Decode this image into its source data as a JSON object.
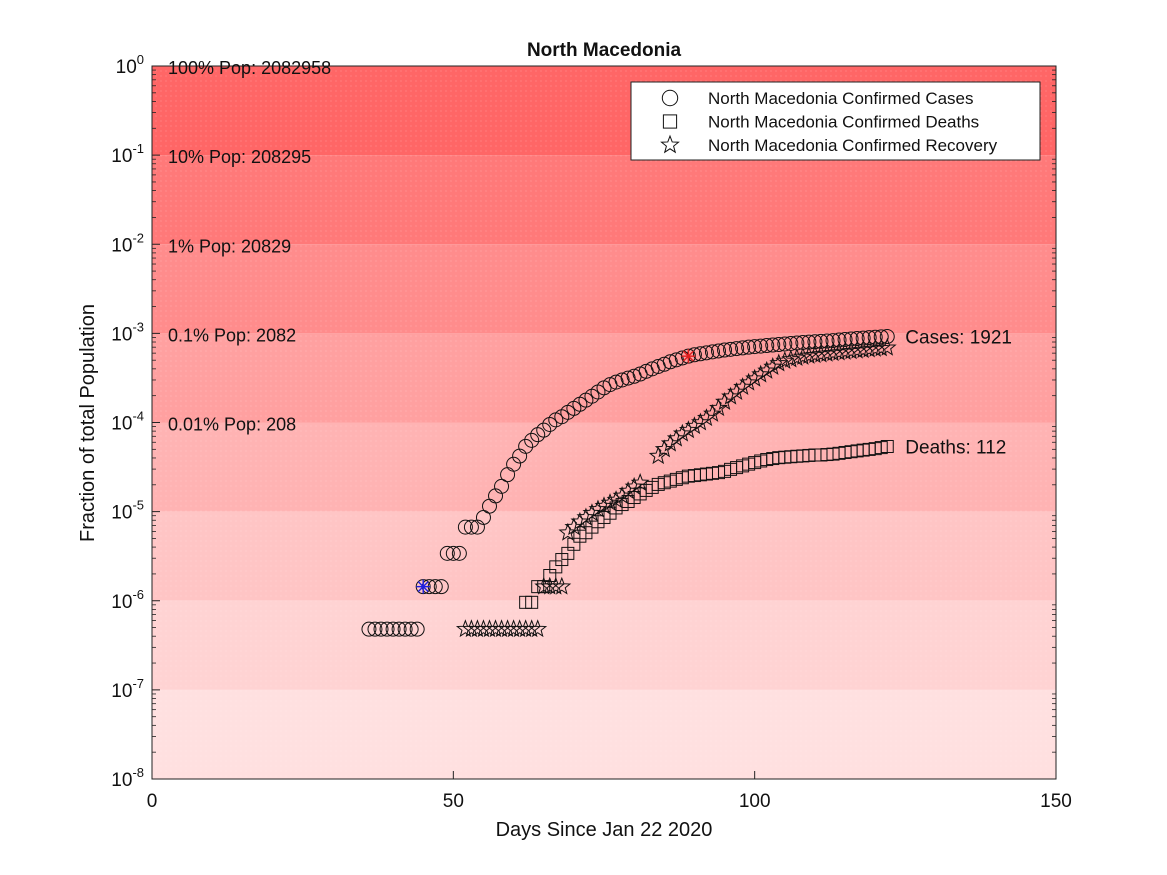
{
  "chart_data": {
    "type": "scatter",
    "title": "North Macedonia",
    "xlabel": "Days Since Jan 22 2020",
    "ylabel": "Fraction of total Population",
    "xlim": [
      0,
      150
    ],
    "ylim_exp": [
      -8,
      0
    ],
    "yscale": "log",
    "x_ticks": [
      {
        "value": 0,
        "label": "0"
      },
      {
        "value": 50,
        "label": "50"
      },
      {
        "value": 100,
        "label": "100"
      },
      {
        "value": 150,
        "label": "150"
      }
    ],
    "y_ticks": [
      {
        "exp": 0,
        "base": "10",
        "power": "0"
      },
      {
        "exp": -1,
        "base": "10",
        "power": "-1"
      },
      {
        "exp": -2,
        "base": "10",
        "power": "-2"
      },
      {
        "exp": -3,
        "base": "10",
        "power": "-3"
      },
      {
        "exp": -4,
        "base": "10",
        "power": "-4"
      },
      {
        "exp": -5,
        "base": "10",
        "power": "-5"
      },
      {
        "exp": -6,
        "base": "10",
        "power": "-6"
      },
      {
        "exp": -7,
        "base": "10",
        "power": "-7"
      },
      {
        "exp": -8,
        "base": "10",
        "power": "-8"
      }
    ],
    "bands": [
      {
        "from_exp": -1,
        "to_exp": 0,
        "color": "#ff6666"
      },
      {
        "from_exp": -2,
        "to_exp": -1,
        "color": "#ff7979"
      },
      {
        "from_exp": -3,
        "to_exp": -2,
        "color": "#ff8c8c"
      },
      {
        "from_exp": -4,
        "to_exp": -3,
        "color": "#ffa0a0"
      },
      {
        "from_exp": -5,
        "to_exp": -4,
        "color": "#ffb3b3"
      },
      {
        "from_exp": -6,
        "to_exp": -5,
        "color": "#ffc5c5"
      },
      {
        "from_exp": -7,
        "to_exp": -6,
        "color": "#ffd3d3"
      },
      {
        "from_exp": -8,
        "to_exp": -7,
        "color": "#ffe0e0"
      }
    ],
    "band_labels": [
      {
        "text": "100% Pop: 2082958",
        "exp": 0
      },
      {
        "text": "10% Pop: 208295",
        "exp": -1
      },
      {
        "text": "1% Pop: 20829",
        "exp": -2
      },
      {
        "text": "0.1% Pop: 2082",
        "exp": -3
      },
      {
        "text": "0.01% Pop: 208",
        "exp": -4
      }
    ],
    "legend": {
      "position": "top-right",
      "entries": [
        {
          "marker": "circle",
          "label": "North Macedonia Confirmed Cases"
        },
        {
          "marker": "square",
          "label": "North Macedonia Confirmed Deaths"
        },
        {
          "marker": "star",
          "label": "North Macedonia Confirmed Recovery"
        }
      ]
    },
    "series": [
      {
        "marker": "circle",
        "points": [
          [
            36,
            4.8e-07
          ],
          [
            37,
            4.8e-07
          ],
          [
            38,
            4.8e-07
          ],
          [
            39,
            4.8e-07
          ],
          [
            40,
            4.8e-07
          ],
          [
            41,
            4.8e-07
          ],
          [
            42,
            4.8e-07
          ],
          [
            43,
            4.8e-07
          ],
          [
            44,
            4.8e-07
          ],
          [
            45,
            1.44e-06
          ],
          [
            46,
            1.44e-06
          ],
          [
            47,
            1.44e-06
          ],
          [
            48,
            1.44e-06
          ],
          [
            49,
            3.4e-06
          ],
          [
            50,
            3.4e-06
          ],
          [
            51,
            3.4e-06
          ],
          [
            52,
            6.7e-06
          ],
          [
            53,
            6.7e-06
          ],
          [
            54,
            6.7e-06
          ],
          [
            55,
            8.6e-06
          ],
          [
            56,
            1.15e-05
          ],
          [
            57,
            1.5e-05
          ],
          [
            58,
            1.92e-05
          ],
          [
            59,
            2.6e-05
          ],
          [
            60,
            3.4e-05
          ],
          [
            61,
            4.2e-05
          ],
          [
            62,
            5.4e-05
          ],
          [
            63,
            6.3e-05
          ],
          [
            64,
            7.3e-05
          ],
          [
            65,
            8.2e-05
          ],
          [
            66,
            9.5e-05
          ],
          [
            67,
            0.000107
          ],
          [
            68,
            0.000116
          ],
          [
            69,
            0.00013
          ],
          [
            70,
            0.000144
          ],
          [
            71,
            0.00016
          ],
          [
            72,
            0.000178
          ],
          [
            73,
            0.000197
          ],
          [
            74,
            0.00022
          ],
          [
            75,
            0.000245
          ],
          [
            76,
            0.000266
          ],
          [
            77,
            0.000284
          ],
          [
            78,
            0.0003
          ],
          [
            79,
            0.000315
          ],
          [
            80,
            0.00033
          ],
          [
            81,
            0.00035
          ],
          [
            82,
            0.000375
          ],
          [
            83,
            0.0004
          ],
          [
            84,
            0.000425
          ],
          [
            85,
            0.00045
          ],
          [
            86,
            0.00048
          ],
          [
            87,
            0.000505
          ],
          [
            88,
            0.00053
          ],
          [
            89,
            0.000555
          ],
          [
            90,
            0.000575
          ],
          [
            91,
            0.00059
          ],
          [
            92,
            0.000605
          ],
          [
            93,
            0.00062
          ],
          [
            94,
            0.000635
          ],
          [
            95,
            0.00065
          ],
          [
            96,
            0.000662
          ],
          [
            97,
            0.000675
          ],
          [
            98,
            0.000687
          ],
          [
            99,
            0.0007
          ],
          [
            100,
            0.00071
          ],
          [
            101,
            0.00072
          ],
          [
            102,
            0.00073
          ],
          [
            103,
            0.00074
          ],
          [
            104,
            0.00075
          ],
          [
            105,
            0.00076
          ],
          [
            106,
            0.00077
          ],
          [
            107,
            0.00078
          ],
          [
            108,
            0.00079
          ],
          [
            109,
            0.000797
          ],
          [
            110,
            0.000805
          ],
          [
            111,
            0.000812
          ],
          [
            112,
            0.00082
          ],
          [
            113,
            0.00083
          ],
          [
            114,
            0.000842
          ],
          [
            115,
            0.000855
          ],
          [
            116,
            0.000865
          ],
          [
            117,
            0.000875
          ],
          [
            118,
            0.000885
          ],
          [
            119,
            0.000895
          ],
          [
            120,
            0.000905
          ],
          [
            121,
            0.000915
          ],
          [
            122,
            0.000922
          ]
        ]
      },
      {
        "marker": "square",
        "points": [
          [
            62,
            9.6e-07
          ],
          [
            63,
            9.6e-07
          ],
          [
            64,
            1.44e-06
          ],
          [
            65,
            1.44e-06
          ],
          [
            66,
            1.92e-06
          ],
          [
            67,
            2.4e-06
          ],
          [
            68,
            2.9e-06
          ],
          [
            69,
            3.4e-06
          ],
          [
            70,
            4.3e-06
          ],
          [
            71,
            5.3e-06
          ],
          [
            72,
            5.8e-06
          ],
          [
            73,
            6.7e-06
          ],
          [
            74,
            7.7e-06
          ],
          [
            75,
            8.6e-06
          ],
          [
            76,
            9.6e-06
          ],
          [
            77,
            1.1e-05
          ],
          [
            78,
            1.2e-05
          ],
          [
            79,
            1.3e-05
          ],
          [
            80,
            1.44e-05
          ],
          [
            81,
            1.58e-05
          ],
          [
            82,
            1.73e-05
          ],
          [
            83,
            1.87e-05
          ],
          [
            84,
            2.02e-05
          ],
          [
            85,
            2.11e-05
          ],
          [
            86,
            2.2e-05
          ],
          [
            87,
            2.3e-05
          ],
          [
            88,
            2.4e-05
          ],
          [
            89,
            2.5e-05
          ],
          [
            90,
            2.54e-05
          ],
          [
            91,
            2.59e-05
          ],
          [
            92,
            2.64e-05
          ],
          [
            93,
            2.69e-05
          ],
          [
            94,
            2.74e-05
          ],
          [
            95,
            2.83e-05
          ],
          [
            96,
            2.98e-05
          ],
          [
            97,
            3.12e-05
          ],
          [
            98,
            3.26e-05
          ],
          [
            99,
            3.41e-05
          ],
          [
            100,
            3.55e-05
          ],
          [
            101,
            3.7e-05
          ],
          [
            102,
            3.84e-05
          ],
          [
            103,
            3.94e-05
          ],
          [
            104,
            4.03e-05
          ],
          [
            105,
            4.08e-05
          ],
          [
            106,
            4.13e-05
          ],
          [
            107,
            4.18e-05
          ],
          [
            108,
            4.22e-05
          ],
          [
            109,
            4.27e-05
          ],
          [
            110,
            4.32e-05
          ],
          [
            111,
            4.32e-05
          ],
          [
            112,
            4.37e-05
          ],
          [
            113,
            4.42e-05
          ],
          [
            114,
            4.51e-05
          ],
          [
            115,
            4.61e-05
          ],
          [
            116,
            4.7e-05
          ],
          [
            117,
            4.8e-05
          ],
          [
            118,
            4.9e-05
          ],
          [
            119,
            4.99e-05
          ],
          [
            120,
            5.09e-05
          ],
          [
            121,
            5.23e-05
          ],
          [
            122,
            5.38e-05
          ]
        ]
      },
      {
        "marker": "star",
        "points": [
          [
            52,
            4.8e-07
          ],
          [
            53,
            4.8e-07
          ],
          [
            54,
            4.8e-07
          ],
          [
            55,
            4.8e-07
          ],
          [
            56,
            4.8e-07
          ],
          [
            57,
            4.8e-07
          ],
          [
            58,
            4.8e-07
          ],
          [
            59,
            4.8e-07
          ],
          [
            60,
            4.8e-07
          ],
          [
            61,
            4.8e-07
          ],
          [
            62,
            4.8e-07
          ],
          [
            63,
            4.8e-07
          ],
          [
            64,
            4.8e-07
          ],
          [
            65,
            1.44e-06
          ],
          [
            66,
            1.44e-06
          ],
          [
            67,
            1.44e-06
          ],
          [
            68,
            1.44e-06
          ],
          [
            69,
            5.8e-06
          ],
          [
            70,
            6.7e-06
          ],
          [
            71,
            7.7e-06
          ],
          [
            72,
            8.6e-06
          ],
          [
            73,
            9.6e-06
          ],
          [
            74,
            1.06e-05
          ],
          [
            75,
            1.15e-05
          ],
          [
            76,
            1.25e-05
          ],
          [
            77,
            1.35e-05
          ],
          [
            78,
            1.5e-05
          ],
          [
            79,
            1.7e-05
          ],
          [
            80,
            1.9e-05
          ],
          [
            81,
            2.1e-05
          ],
          [
            84,
            4.2e-05
          ],
          [
            85,
            5e-05
          ],
          [
            86,
            5.8e-05
          ],
          [
            87,
            6.6e-05
          ],
          [
            88,
            7.5e-05
          ],
          [
            89,
            8.2e-05
          ],
          [
            90,
            9.1e-05
          ],
          [
            91,
            0.0001
          ],
          [
            92,
            0.000112
          ],
          [
            93,
            0.000125
          ],
          [
            94,
            0.000145
          ],
          [
            95,
            0.00017
          ],
          [
            96,
            0.000195
          ],
          [
            97,
            0.00022
          ],
          [
            98,
            0.00025
          ],
          [
            99,
            0.00028
          ],
          [
            100,
            0.00031
          ],
          [
            101,
            0.000345
          ],
          [
            102,
            0.00038
          ],
          [
            103,
            0.00042
          ],
          [
            104,
            0.00046
          ],
          [
            105,
            0.00049
          ],
          [
            106,
            0.00051
          ],
          [
            107,
            0.00053
          ],
          [
            108,
            0.000545
          ],
          [
            109,
            0.00056
          ],
          [
            110,
            0.00057
          ],
          [
            111,
            0.00058
          ],
          [
            112,
            0.00059
          ],
          [
            113,
            0.0006
          ],
          [
            114,
            0.00061
          ],
          [
            115,
            0.00062
          ],
          [
            116,
            0.00063
          ],
          [
            117,
            0.00064
          ],
          [
            118,
            0.00065
          ],
          [
            119,
            0.00066
          ],
          [
            120,
            0.00067
          ],
          [
            121,
            0.00068
          ],
          [
            122,
            0.00069
          ]
        ]
      }
    ],
    "highlights": [
      {
        "x": 45,
        "y": 1.44e-06,
        "color": "#1f1fe0"
      },
      {
        "x": 89,
        "y": 0.000555,
        "color": "#e01f1f"
      }
    ],
    "end_labels": [
      {
        "text": "Cases: 1921",
        "x": 124,
        "y": 0.000922
      },
      {
        "text": "Deaths: 112",
        "x": 124,
        "y": 5.38e-05
      }
    ]
  }
}
